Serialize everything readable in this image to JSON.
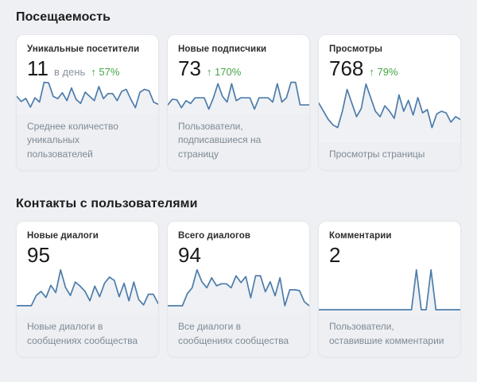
{
  "colors": {
    "page_bg": "#eef0f3",
    "card_bg": "#ffffff",
    "card_footer_bg": "#edeff2",
    "title_text": "#2c2d2e",
    "value_text": "#19191a",
    "muted_text": "#7f8a95",
    "delta_green": "#45a546",
    "chart_line": "#4d7cab",
    "chart_fill": "#eff1f4"
  },
  "sections": [
    {
      "title": "Посещаемость",
      "cards": [
        {
          "title": "Уникальные посетители",
          "value": "11",
          "unit": "в день",
          "delta_arrow": "↑",
          "delta": "57%",
          "description": "Среднее количество уникальных пользователей"
        },
        {
          "title": "Новые подписчики",
          "value": "73",
          "unit": "",
          "delta_arrow": "↑",
          "delta": "170%",
          "description": "Пользователи, подписавшиеся на страницу"
        },
        {
          "title": "Просмотры",
          "value": "768",
          "unit": "",
          "delta_arrow": "↑",
          "delta": "79%",
          "description": "Просмотры страницы"
        }
      ]
    },
    {
      "title": "Контакты с пользователями",
      "cards": [
        {
          "title": "Новые диалоги",
          "value": "95",
          "unit": "",
          "delta_arrow": "",
          "delta": "",
          "description": "Новые диалоги в сообщениях сообщества"
        },
        {
          "title": "Всего диалогов",
          "value": "94",
          "unit": "",
          "delta_arrow": "",
          "delta": "",
          "description": "Все диалоги в сообщениях сообщества"
        },
        {
          "title": "Комментарии",
          "value": "2",
          "unit": "",
          "delta_arrow": "",
          "delta": "",
          "description": "Пользователи, оставившие комментарии"
        }
      ]
    }
  ],
  "chart_data": [
    {
      "type": "line",
      "label": "Уникальные посетители",
      "values": [
        5,
        3.2,
        4.3,
        1.2,
        4.5,
        3,
        10,
        9.8,
        5,
        4.2,
        6.3,
        3.5,
        8,
        4,
        2.5,
        6.5,
        5,
        3.5,
        8.5,
        4.2,
        6,
        6,
        3.5,
        6.8,
        7.5,
        4,
        1,
        6.5,
        7.5,
        7,
        3,
        2.2
      ],
      "axes": "hidden",
      "grid": false,
      "legend": false
    },
    {
      "type": "line",
      "label": "Новые подписчики",
      "values": [
        2,
        4,
        3.8,
        1,
        3.5,
        2.5,
        4.5,
        4.5,
        4.5,
        0.5,
        4.5,
        9.5,
        5,
        3,
        9.5,
        3.5,
        4.5,
        4.5,
        4.5,
        0.5,
        4.5,
        4.5,
        4.5,
        3,
        9.5,
        3,
        4.5,
        10,
        10,
        2,
        2,
        2
      ],
      "axes": "hidden",
      "grid": false,
      "legend": false
    },
    {
      "type": "line",
      "label": "Просмотры",
      "values": [
        6,
        4.5,
        3,
        2,
        1.5,
        4.5,
        8.5,
        6,
        3.5,
        5,
        9.5,
        7,
        4.5,
        3.5,
        5.5,
        4.5,
        3.2,
        7.5,
        4.5,
        6.5,
        3.8,
        7,
        4.2,
        4.8,
        1.5,
        4,
        4.5,
        4.2,
        2.5,
        3.5,
        3
      ],
      "axes": "hidden",
      "grid": false,
      "legend": false
    },
    {
      "type": "line",
      "label": "Новые диалоги",
      "values": [
        1,
        1,
        1,
        1,
        3.5,
        4.5,
        3,
        6,
        4.2,
        9.8,
        5.5,
        3.5,
        6.8,
        5.8,
        4.5,
        2.2,
        5.8,
        3.2,
        6.5,
        8,
        7.2,
        3.2,
        6.5,
        2.2,
        6.8,
        2.5,
        1.2,
        3.8,
        3.8,
        1.5
      ],
      "axes": "hidden",
      "grid": false,
      "legend": false
    },
    {
      "type": "line",
      "label": "Всего диалогов",
      "values": [
        1,
        1,
        1,
        1,
        4,
        5.5,
        10,
        7,
        5.5,
        8,
        6,
        6.5,
        6.5,
        5.5,
        8.5,
        6.8,
        8.3,
        3,
        8.5,
        8.5,
        4.5,
        7,
        3.5,
        8,
        1,
        5,
        5,
        4.8,
        2,
        1
      ],
      "axes": "hidden",
      "grid": false,
      "legend": false
    },
    {
      "type": "line",
      "label": "Комментарии",
      "values": [
        0,
        0,
        0,
        0,
        0,
        0,
        0,
        0,
        0,
        0,
        0,
        0,
        0,
        0,
        0,
        0,
        0,
        0,
        0,
        0,
        1,
        0,
        0,
        1,
        0,
        0,
        0,
        0,
        0,
        0
      ],
      "axes": "hidden",
      "grid": false,
      "legend": false
    }
  ]
}
